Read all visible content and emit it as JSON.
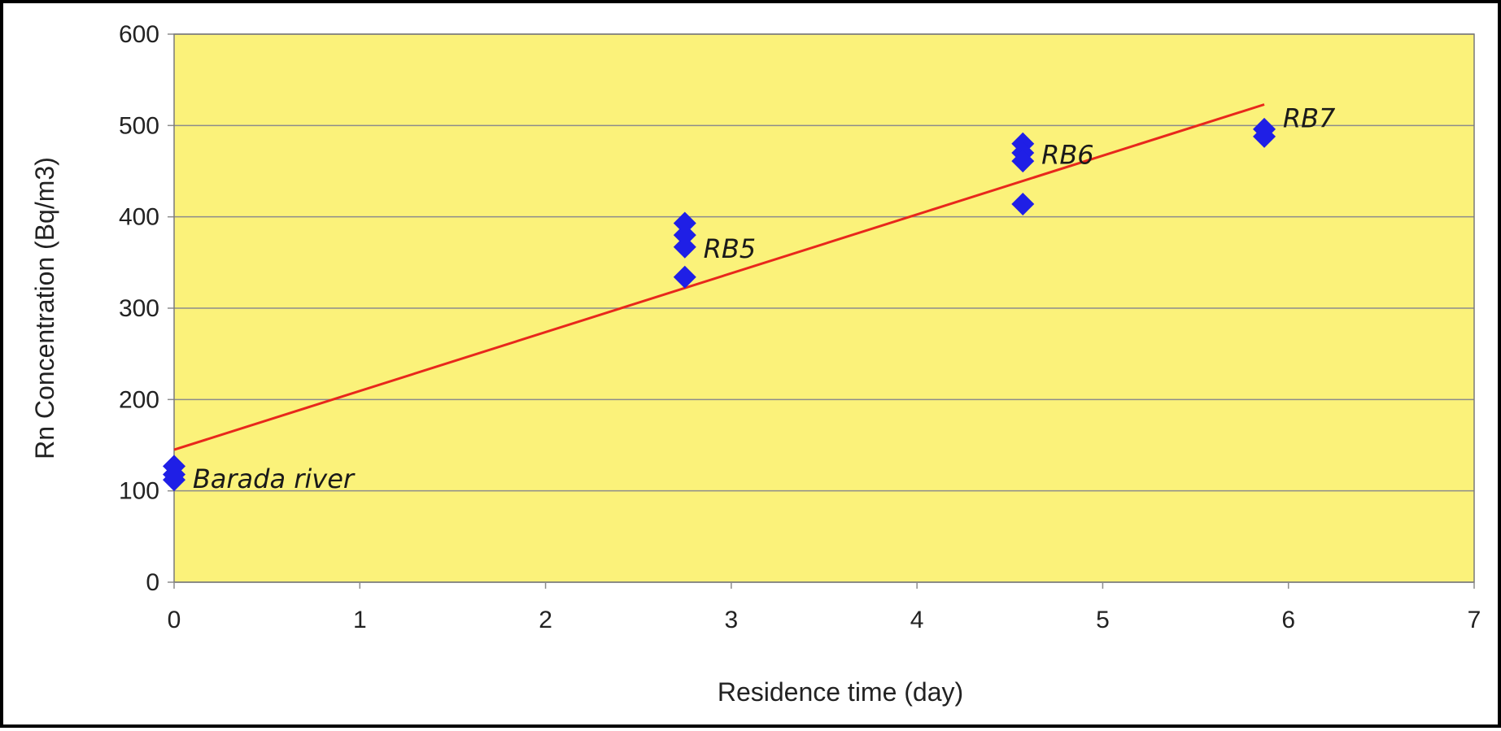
{
  "chart_data": {
    "type": "scatter",
    "title": "",
    "xlabel": "Residence time (day)",
    "ylabel": "Rn Concentration (Bq/m3)",
    "xlim": [
      0,
      7
    ],
    "ylim": [
      0,
      600
    ],
    "x_ticks": [
      "0",
      "1",
      "2",
      "3",
      "4",
      "5",
      "6",
      "7"
    ],
    "y_ticks": [
      "0",
      "100",
      "200",
      "300",
      "400",
      "500",
      "600"
    ],
    "grid": "horizontal",
    "legend": "none",
    "series": [
      {
        "marker": "diamond",
        "color": "#1f1fe6",
        "points": [
          {
            "x": 0,
            "y": 127
          },
          {
            "x": 0,
            "y": 118
          },
          {
            "x": 0,
            "y": 112
          },
          {
            "x": 2.75,
            "y": 393
          },
          {
            "x": 2.75,
            "y": 380
          },
          {
            "x": 2.75,
            "y": 367
          },
          {
            "x": 2.75,
            "y": 334
          },
          {
            "x": 4.57,
            "y": 480
          },
          {
            "x": 4.57,
            "y": 470
          },
          {
            "x": 4.57,
            "y": 461
          },
          {
            "x": 4.57,
            "y": 414
          },
          {
            "x": 5.87,
            "y": 496
          },
          {
            "x": 5.87,
            "y": 488
          }
        ]
      }
    ],
    "trendline": {
      "color": "#e8281c",
      "x0": 0,
      "y0": 145,
      "x1": 5.87,
      "y1": 523
    },
    "annotations": [
      {
        "text": "Barada river",
        "x": 0.1,
        "y": 113
      },
      {
        "text": "RB5",
        "x": 2.85,
        "y": 365
      },
      {
        "text": "RB6",
        "x": 4.67,
        "y": 468
      },
      {
        "text": "RB7",
        "x": 5.97,
        "y": 508
      }
    ],
    "colors": {
      "plot_background": "#fbf27a",
      "gridline": "#8c8c8c",
      "plot_border": "#7a7a7a"
    }
  }
}
